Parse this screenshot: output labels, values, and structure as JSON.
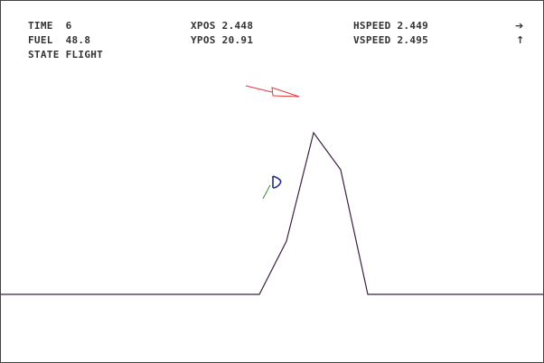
{
  "hud": {
    "time_label": "TIME",
    "time_value": "6",
    "fuel_label": "FUEL",
    "fuel_value": "48.8",
    "state_label": "STATE",
    "state_value": "FLIGHT",
    "xpos_label": "XPOS",
    "xpos_value": "2.448",
    "ypos_label": "YPOS",
    "ypos_value": "20.91",
    "hspeed_label": "HSPEED",
    "hspeed_value": "2.449",
    "vspeed_label": "VSPEED",
    "vspeed_value": "2.495",
    "hspeed_arrow": "➔",
    "vspeed_arrow": "↑"
  },
  "colors": {
    "background": "#ffffff",
    "text": "#333333",
    "terrain": "#3b2140",
    "lander": "#1f2d8a",
    "thrust": "#3a8a3a",
    "pointer": "#e0393b"
  },
  "icons": {
    "lander": "lander-icon",
    "thrust": "thrust-flame-icon",
    "pointer": "direction-pointer-icon"
  }
}
